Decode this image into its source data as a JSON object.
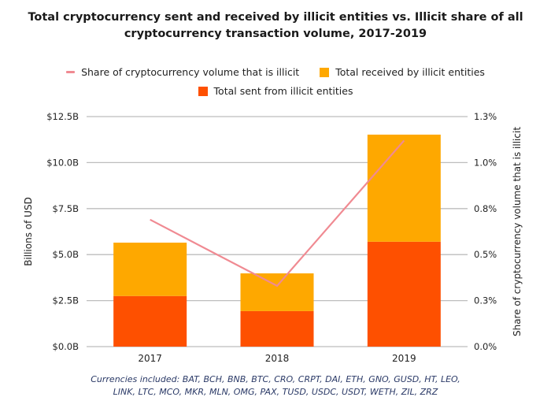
{
  "chart_data": {
    "type": "bar",
    "subtype": "stacked bar with line on secondary axis",
    "title_lines": [
      "Total cryptocurrency sent and received by illicit entities vs. Illicit share of all",
      "cryptocurrency transaction volume, 2017-2019"
    ],
    "categories": [
      "2017",
      "2018",
      "2019"
    ],
    "series": [
      {
        "name": "Total sent from illicit entities",
        "kind": "bar",
        "axis": "left",
        "color": "#fe5000",
        "values": [
          2.75,
          1.93,
          5.7
        ]
      },
      {
        "name": "Total received by illicit entities",
        "kind": "bar",
        "axis": "left",
        "color": "#fea800",
        "values": [
          2.9,
          2.05,
          5.82
        ]
      },
      {
        "name": "Share of cryptocurrency volume that is illicit",
        "kind": "line",
        "axis": "right",
        "color": "#f08a92",
        "values": [
          0.69,
          0.33,
          1.12
        ]
      }
    ],
    "legend": {
      "placement": "top",
      "rows": [
        [
          {
            "label": "Share of cryptocurrency volume that is illicit",
            "marker": "line",
            "color": "#f08a92"
          },
          {
            "label": "Total received by illicit entities",
            "marker": "box",
            "color": "#fea800"
          }
        ],
        [
          {
            "label": "Total sent from illicit entities",
            "marker": "box",
            "color": "#fe5000"
          }
        ]
      ]
    },
    "ylabel": "Billions of USD",
    "ylim": [
      0,
      12.5
    ],
    "yticks": [
      {
        "value": 0,
        "label": "$0.0B"
      },
      {
        "value": 2.5,
        "label": "$2.5B"
      },
      {
        "value": 5,
        "label": "$5.0B"
      },
      {
        "value": 7.5,
        "label": "$7.5B"
      },
      {
        "value": 10,
        "label": "$10.0B"
      },
      {
        "value": 12.5,
        "label": "$12.5B"
      }
    ],
    "y2label": "Share of cryptocurrency volume that is illicit",
    "y2lim": [
      0,
      1.25
    ],
    "y2ticks": [
      {
        "value": 0,
        "label": "0.0%"
      },
      {
        "value": 0.25,
        "label": "0.3%"
      },
      {
        "value": 0.5,
        "label": "0.5%"
      },
      {
        "value": 0.75,
        "label": "0.8%"
      },
      {
        "value": 1.0,
        "label": "1.0%"
      },
      {
        "value": 1.25,
        "label": "1.3%"
      }
    ],
    "grid": true,
    "footnote_lines": [
      "Currencies included: BAT, BCH, BNB, BTC, CRO, CRPT, DAI, ETH, GNO, GUSD, HT, LEO,",
      "LINK, LTC, MCO, MKR, MLN, OMG, PAX, TUSD, USDC, USDT, WETH, ZIL, ZRZ"
    ]
  }
}
